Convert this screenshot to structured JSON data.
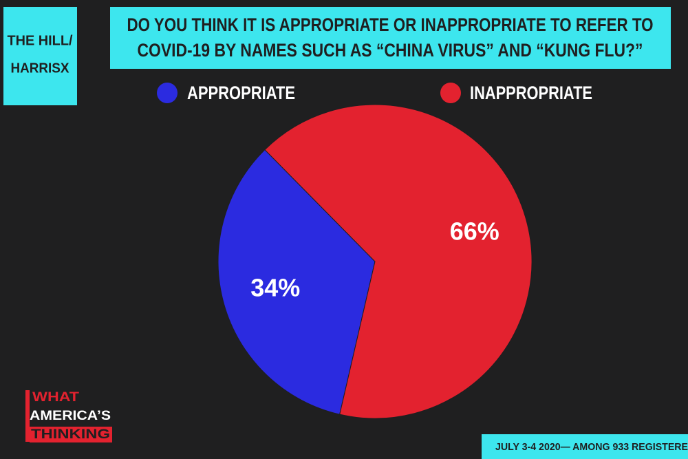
{
  "chart_data": {
    "type": "pie",
    "title": [
      "DO YOU THINK IT IS APPROPRIATE OR INAPPROPRIATE TO REFER TO",
      "COVID-19 BY NAMES SUCH AS “CHINA VIRUS” AND “KUNG FLU?”"
    ],
    "source": [
      "THE HILL/",
      "HARRISX"
    ],
    "logo": [
      "WHAT",
      "AMERICA’S",
      "THINKING"
    ],
    "footnote": "JULY 3-4 2020— AMONG 933 REGISTERE",
    "categories": [
      "APPROPRIATE",
      "INAPPROPRIATE"
    ],
    "values": [
      34,
      66
    ],
    "value_labels": [
      "34%",
      "66%"
    ],
    "colors": [
      "#2b2be0",
      "#e3222f"
    ]
  }
}
